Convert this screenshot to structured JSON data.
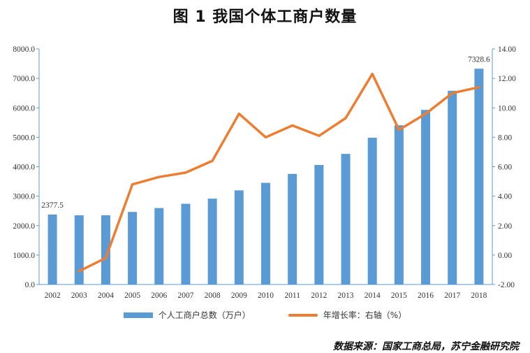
{
  "title": "图 1    我国个体工商户数量",
  "source": "数据来源：国家工商总局，苏宁金融研究院",
  "chart_data": {
    "type": "bar+line",
    "categories": [
      "2002",
      "2003",
      "2004",
      "2005",
      "2006",
      "2007",
      "2008",
      "2009",
      "2010",
      "2011",
      "2012",
      "2013",
      "2014",
      "2015",
      "2016",
      "2017",
      "2018"
    ],
    "series": [
      {
        "name": "个人工商户总数（万户）",
        "type": "bar",
        "axis": "left",
        "color": "#5B9BD5",
        "values": [
          2377.5,
          2350,
          2350,
          2464,
          2596,
          2742,
          2917,
          3197,
          3453,
          3756,
          4059,
          4436,
          4984,
          5408,
          5930,
          6579,
          7328.6
        ]
      },
      {
        "name": "年增长率：右轴（%）",
        "type": "line",
        "axis": "right",
        "color": "#ED7D31",
        "values": [
          null,
          -1.1,
          -0.2,
          4.8,
          5.3,
          5.6,
          6.4,
          9.6,
          8.0,
          8.8,
          8.1,
          9.3,
          12.3,
          8.5,
          9.6,
          11.0,
          11.4
        ]
      }
    ],
    "left_axis": {
      "min": 0,
      "max": 8000,
      "step": 1000,
      "tick_labels": [
        "0.0",
        "1000.0",
        "2000.0",
        "3000.0",
        "4000.0",
        "5000.0",
        "6000.0",
        "7000.0",
        "8000.0"
      ]
    },
    "right_axis": {
      "min": -2,
      "max": 14,
      "step": 2,
      "tick_labels": [
        "-2.00",
        "0.00",
        "2.00",
        "4.00",
        "6.00",
        "8.00",
        "10.00",
        "12.00",
        "14.00"
      ]
    },
    "data_labels": [
      {
        "index": 0,
        "text": "2377.5"
      },
      {
        "index": 16,
        "text": "7328.6"
      }
    ],
    "legend_position": "bottom"
  }
}
